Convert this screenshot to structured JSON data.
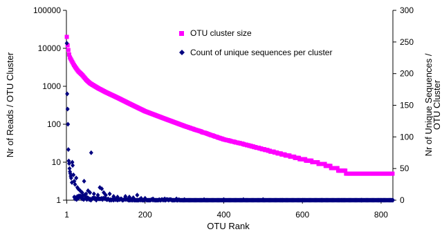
{
  "chart_data": {
    "type": "scatter",
    "title": "",
    "xlabel": "OTU Rank",
    "ylabel_left": "Nr of Reads / OTU Cluster",
    "ylabel_right": "Nr of Unique Sequences / OTU Cluster",
    "x_ticks": [
      1,
      200,
      400,
      600,
      800
    ],
    "y_left_ticks": [
      "1",
      "10",
      "100",
      "1000",
      "10000",
      "100000"
    ],
    "y_left_scale": "log",
    "y_left_range": [
      1,
      100000
    ],
    "y_right_ticks": [
      0,
      50,
      100,
      150,
      200,
      250,
      300
    ],
    "y_right_range": [
      0,
      300
    ],
    "x_range": [
      0,
      830
    ],
    "grid": false,
    "legend_position": "top-right-inside",
    "series": [
      {
        "name": "OTU cluster size",
        "axis": "left",
        "color": "#ff00ff",
        "marker": "square",
        "curve": [
          [
            1,
            20000
          ],
          [
            2,
            15000
          ],
          [
            3,
            12000
          ],
          [
            5,
            9000
          ],
          [
            8,
            6000
          ],
          [
            12,
            5000
          ],
          [
            20,
            3500
          ],
          [
            30,
            2500
          ],
          [
            40,
            2000
          ],
          [
            50,
            1500
          ],
          [
            60,
            1200
          ],
          [
            80,
            900
          ],
          [
            100,
            700
          ],
          [
            130,
            500
          ],
          [
            160,
            350
          ],
          [
            200,
            220
          ],
          [
            250,
            140
          ],
          [
            300,
            90
          ],
          [
            350,
            60
          ],
          [
            400,
            40
          ],
          [
            450,
            30
          ],
          [
            500,
            22
          ],
          [
            550,
            16
          ],
          [
            600,
            12
          ],
          [
            650,
            9
          ],
          [
            700,
            6
          ],
          [
            720,
            5
          ],
          [
            830,
            5
          ]
        ]
      },
      {
        "name": "Count of unique sequences per cluster",
        "axis": "right",
        "color": "#000080",
        "marker": "diamond",
        "points": [
          [
            1,
            248
          ],
          [
            2,
            168
          ],
          [
            3,
            144
          ],
          [
            4,
            120
          ],
          [
            5,
            80
          ],
          [
            6,
            62
          ],
          [
            7,
            58
          ],
          [
            8,
            50
          ],
          [
            9,
            45
          ],
          [
            10,
            42
          ],
          [
            11,
            38
          ],
          [
            12,
            35
          ],
          [
            14,
            28
          ],
          [
            15,
            60
          ],
          [
            16,
            55
          ],
          [
            18,
            40
          ],
          [
            20,
            30
          ],
          [
            22,
            25
          ],
          [
            25,
            35
          ],
          [
            28,
            20
          ],
          [
            30,
            18
          ],
          [
            35,
            15
          ],
          [
            40,
            12
          ],
          [
            45,
            30
          ],
          [
            50,
            10
          ],
          [
            55,
            15
          ],
          [
            60,
            12
          ],
          [
            63,
            75
          ],
          [
            70,
            10
          ],
          [
            80,
            8
          ],
          [
            85,
            20
          ],
          [
            90,
            18
          ],
          [
            95,
            12
          ],
          [
            100,
            8
          ],
          [
            110,
            10
          ],
          [
            120,
            6
          ],
          [
            130,
            5
          ],
          [
            150,
            6
          ],
          [
            160,
            5
          ],
          [
            170,
            4
          ],
          [
            180,
            8
          ],
          [
            190,
            3
          ],
          [
            200,
            3
          ],
          [
            220,
            2
          ],
          [
            250,
            2
          ],
          [
            280,
            2
          ],
          [
            300,
            1
          ],
          [
            350,
            1
          ],
          [
            400,
            1
          ],
          [
            450,
            1
          ],
          [
            500,
            1
          ],
          [
            550,
            0
          ],
          [
            600,
            0
          ],
          [
            650,
            0
          ],
          [
            700,
            0
          ],
          [
            750,
            0
          ],
          [
            800,
            0
          ],
          [
            830,
            0
          ]
        ],
        "baseline_noise": true
      }
    ]
  }
}
